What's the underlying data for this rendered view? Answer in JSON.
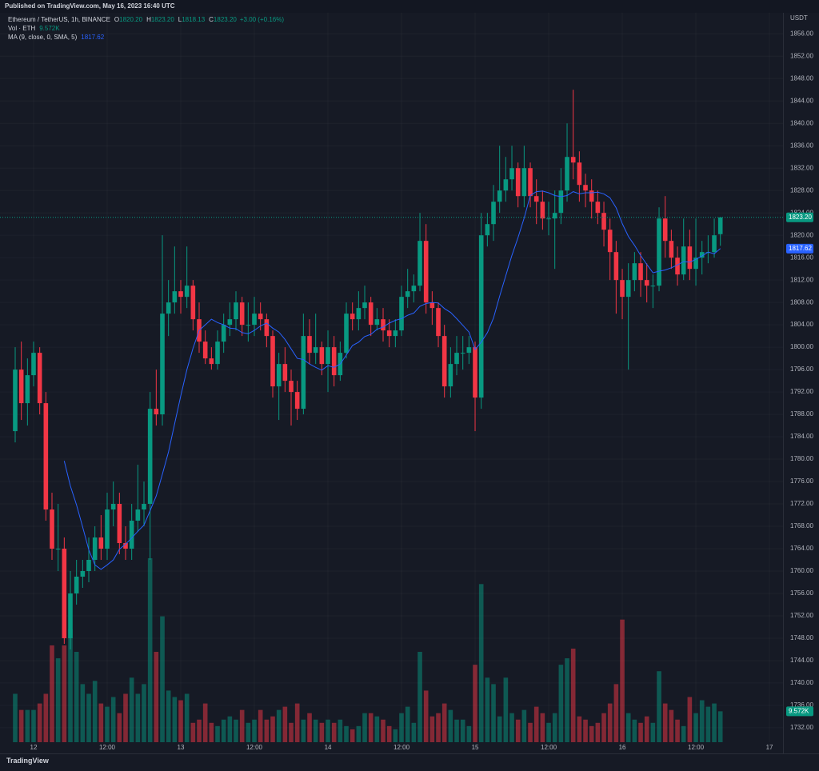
{
  "header": {
    "published": "Published on TradingView.com, May 16, 2023 16:40 UTC"
  },
  "footer": {
    "brand": "TradingView"
  },
  "chart_data": {
    "type": "candlestick",
    "symbol": "Ethereum / TetherUS, 1h, BINANCE",
    "ohlc_legend": [
      {
        "key": "O",
        "value": "1820.20"
      },
      {
        "key": "H",
        "value": "1823.20"
      },
      {
        "key": "L",
        "value": "1818.13"
      },
      {
        "key": "C",
        "value": "1823.20"
      }
    ],
    "change": "+3.00 (+0.16%)",
    "volume_legend": {
      "name": "Vol · ETH",
      "value": "9.572K"
    },
    "ma_legend": {
      "name": "MA (9, close, 0, SMA, 5)",
      "value": "1817.62"
    },
    "currency": "USDT",
    "price_label": "1823.20",
    "ma_label": "1817.62",
    "volume_label": "9.572K",
    "up_color": "#089981",
    "down_color": "#f23645",
    "ma_color": "#2962ff",
    "grid": true,
    "categories": [
      null,
      null,
      null,
      "12",
      null,
      null,
      null,
      null,
      null,
      null,
      null,
      null,
      null,
      null,
      null,
      "12:00",
      null,
      null,
      null,
      null,
      null,
      null,
      null,
      null,
      null,
      null,
      null,
      "13",
      null,
      null,
      null,
      null,
      null,
      null,
      null,
      null,
      null,
      null,
      null,
      "12:00",
      null,
      null,
      null,
      null,
      null,
      null,
      null,
      null,
      null,
      null,
      null,
      "14",
      null,
      null,
      null,
      null,
      null,
      null,
      null,
      null,
      null,
      null,
      null,
      "12:00",
      null,
      null,
      null,
      null,
      null,
      null,
      null,
      null,
      null,
      null,
      null,
      "15",
      null,
      null,
      null,
      null,
      null,
      null,
      null,
      null,
      null,
      null,
      null,
      "12:00",
      null,
      null,
      null,
      null,
      null,
      null,
      null,
      null,
      null,
      null,
      null,
      "16",
      null,
      null,
      null,
      null,
      null,
      null,
      null,
      null,
      null,
      null,
      null,
      "12:00",
      null,
      null,
      null,
      null,
      null,
      null,
      null,
      null,
      null,
      null,
      null,
      "17"
    ],
    "open": [
      1785,
      1796,
      1790,
      1795,
      1799,
      1790,
      1771,
      1764,
      1764,
      1748,
      1756,
      1759,
      1760,
      1762,
      1766,
      1764,
      1771,
      1772,
      1765,
      1764,
      1769,
      1771,
      1772,
      1789,
      1788,
      1806,
      1808,
      1810,
      1809,
      1811,
      1805,
      1801,
      1798,
      1797,
      1801,
      1804,
      1805,
      1808,
      1804,
      1804,
      1806,
      1805,
      1802,
      1793,
      1797,
      1794,
      1792,
      1789,
      1802,
      1799,
      1800,
      1797,
      1800,
      1795,
      1799,
      1806,
      1805,
      1807,
      1808,
      1804,
      1805,
      1803,
      1802,
      1803,
      1809,
      1810,
      1811,
      1819,
      1808,
      1807,
      1802,
      1793,
      1797,
      1799,
      1799,
      1800,
      1791,
      1820,
      1822,
      1826,
      1828,
      1830,
      1832,
      1827,
      1832,
      1827,
      1826,
      1823,
      1823,
      1824,
      1828,
      1834,
      1833,
      1829,
      1828,
      1826,
      1824,
      1821,
      1817,
      1812,
      1809,
      1812,
      1815,
      1812,
      1811,
      1811,
      1823,
      1819,
      1816,
      1813,
      1818,
      1814,
      1816,
      1817,
      1817,
      1820.2,
      null,
      null,
      null,
      null,
      null,
      null,
      null,
      null
    ],
    "high": [
      1800,
      1801,
      1798,
      1801,
      1800,
      1792,
      1774,
      1772,
      1766,
      1760,
      1762,
      1762,
      1766,
      1768,
      1770,
      1774,
      1776,
      1774,
      1768,
      1772,
      1779,
      1776,
      1792,
      1796,
      1820,
      1812,
      1818,
      1812,
      1818,
      1812,
      1808,
      1803,
      1800,
      1803,
      1806,
      1808,
      1810,
      1809,
      1808,
      1809,
      1808,
      1806,
      1803,
      1799,
      1800,
      1796,
      1794,
      1806,
      1805,
      1806,
      1801,
      1803,
      1802,
      1801,
      1808,
      1808,
      1810,
      1811,
      1809,
      1807,
      1807,
      1805,
      1805,
      1811,
      1814,
      1813,
      1824,
      1822,
      1810,
      1808,
      1804,
      1800,
      1802,
      1802,
      1802,
      1801,
      1824,
      1824,
      1829,
      1836,
      1834,
      1836,
      1833,
      1836,
      1833,
      1830,
      1828,
      1826,
      1828,
      1832,
      1840,
      1846,
      1835,
      1831,
      1830,
      1828,
      1826,
      1823,
      1819,
      1814,
      1815,
      1817,
      1817,
      1815,
      1813,
      1825,
      1827,
      1821,
      1818,
      1823,
      1821,
      1823,
      1819,
      1820,
      1823,
      1823.2,
      null,
      null,
      null,
      null,
      null,
      null,
      null,
      null
    ],
    "low": [
      1783,
      1787,
      1786,
      1793,
      1788,
      1769,
      1762,
      1760,
      1747,
      1746,
      1754,
      1757,
      1758,
      1760,
      1762,
      1762,
      1768,
      1763,
      1762,
      1762,
      1767,
      1768,
      1762,
      1786,
      1786,
      1802,
      1806,
      1806,
      1807,
      1803,
      1799,
      1797,
      1796,
      1796,
      1799,
      1802,
      1803,
      1802,
      1801,
      1802,
      1803,
      1800,
      1791,
      1787,
      1792,
      1786,
      1787,
      1788,
      1797,
      1797,
      1795,
      1792,
      1793,
      1794,
      1798,
      1803,
      1803,
      1805,
      1802,
      1803,
      1801,
      1800,
      1800,
      1802,
      1807,
      1808,
      1810,
      1806,
      1804,
      1800,
      1791,
      1791,
      1795,
      1796,
      1797,
      1785,
      1789,
      1818,
      1819,
      1824,
      1826,
      1828,
      1825,
      1825,
      1825,
      1822,
      1821,
      1820,
      1814,
      1822,
      1826,
      1830,
      1826,
      1825,
      1823,
      1822,
      1818,
      1812,
      1806,
      1805,
      1796,
      1810,
      1809,
      1808,
      1807,
      1810,
      1816,
      1814,
      1811,
      1812,
      1812,
      1811,
      1813,
      1815,
      1816,
      1818.13,
      null,
      null,
      null,
      null,
      null,
      null,
      null,
      null
    ],
    "close": [
      1796,
      1790,
      1795,
      1799,
      1790,
      1771,
      1764,
      1764,
      1748,
      1756,
      1759,
      1760,
      1762,
      1766,
      1764,
      1771,
      1772,
      1765,
      1764,
      1769,
      1771,
      1772,
      1789,
      1788,
      1806,
      1808,
      1810,
      1809,
      1811,
      1805,
      1801,
      1798,
      1797,
      1801,
      1804,
      1805,
      1808,
      1804,
      1804,
      1806,
      1805,
      1802,
      1793,
      1797,
      1794,
      1792,
      1789,
      1802,
      1799,
      1800,
      1797,
      1800,
      1795,
      1799,
      1806,
      1805,
      1807,
      1808,
      1804,
      1805,
      1803,
      1802,
      1803,
      1809,
      1810,
      1811,
      1819,
      1808,
      1807,
      1802,
      1793,
      1797,
      1799,
      1799,
      1800,
      1791,
      1820,
      1822,
      1826,
      1828,
      1830,
      1832,
      1827,
      1832,
      1827,
      1826,
      1823,
      1823,
      1824,
      1828,
      1834,
      1833,
      1829,
      1828,
      1826,
      1824,
      1821,
      1817,
      1812,
      1809,
      1812,
      1815,
      1812,
      1811,
      1811,
      1823,
      1819,
      1816,
      1813,
      1818,
      1814,
      1816,
      1817,
      1817,
      1820,
      1823.2,
      null,
      null,
      null,
      null,
      null,
      null,
      null,
      null
    ],
    "volume": [
      15,
      10,
      10,
      10,
      12,
      15,
      30,
      26,
      30,
      35,
      28,
      18,
      15,
      19,
      12,
      11,
      14,
      9,
      15,
      20,
      15,
      18,
      57,
      28,
      39,
      16,
      14,
      13,
      15,
      6,
      7,
      12,
      6,
      5,
      7,
      8,
      7,
      10,
      6,
      7,
      10,
      7,
      8,
      10,
      11,
      6,
      12,
      7,
      9,
      7,
      6,
      7,
      6,
      7,
      5,
      4,
      5,
      9,
      9,
      8,
      7,
      5,
      4,
      9,
      11,
      6,
      28,
      16,
      8,
      9,
      12,
      10,
      7,
      7,
      5,
      24,
      49,
      20,
      18,
      8,
      20,
      9,
      7,
      10,
      6,
      11,
      9,
      6,
      9,
      24,
      26,
      29,
      8,
      7,
      5,
      6,
      9,
      12,
      18,
      38,
      9,
      7,
      6,
      8,
      6,
      22,
      12,
      10,
      7,
      5,
      14,
      9,
      13,
      11,
      12,
      9.572,
      null,
      null,
      null,
      null,
      null,
      null,
      null,
      null
    ],
    "ma": [
      null,
      null,
      null,
      null,
      null,
      null,
      null,
      null,
      1779.7,
      1775.2,
      1771.8,
      1767.9,
      1763.8,
      1761.1,
      1760.3,
      1761.1,
      1762.0,
      1763.9,
      1764.8,
      1765.9,
      1767.1,
      1768.2,
      1770.8,
      1773.4,
      1777.3,
      1781.3,
      1786.3,
      1791.3,
      1796.0,
      1799.8,
      1803.0,
      1804.0,
      1805.0,
      1804.4,
      1804.0,
      1803.4,
      1803.3,
      1802.6,
      1802.4,
      1803.0,
      1803.8,
      1804.3,
      1803.4,
      1802.7,
      1801.4,
      1799.7,
      1798.0,
      1797.8,
      1797.0,
      1796.4,
      1795.9,
      1796.7,
      1796.4,
      1797.0,
      1798.6,
      1800.3,
      1800.9,
      1801.9,
      1802.3,
      1803.2,
      1803.6,
      1804.3,
      1804.8,
      1805.1,
      1805.7,
      1806.1,
      1807.3,
      1807.8,
      1808.0,
      1807.9,
      1806.9,
      1806.2,
      1805.1,
      1803.9,
      1802.7,
      1799.6,
      1800.9,
      1802.6,
      1805.2,
      1809.1,
      1812.8,
      1816.4,
      1819.6,
      1823.1,
      1827.1,
      1827.8,
      1827.9,
      1827.6,
      1827.1,
      1826.9,
      1827.1,
      1827.8,
      1827.4,
      1827.6,
      1827.6,
      1827.7,
      1827.4,
      1826.7,
      1824.9,
      1822.1,
      1819.8,
      1818.2,
      1816.4,
      1814.8,
      1813.3,
      1813.6,
      1813.8,
      1814.2,
      1814.7,
      1815.3,
      1815.2,
      1815.7,
      1816.3,
      1817.0,
      1816.7,
      1817.62,
      null,
      null,
      null,
      null,
      null,
      null,
      null,
      null
    ],
    "ylim": [
      1727.7,
      1859.9
    ],
    "yticks": [
      {
        "value": 1856,
        "label": "1856.00"
      },
      {
        "value": 1852,
        "label": "1852.00"
      },
      {
        "value": 1848,
        "label": "1848.00"
      },
      {
        "value": 1844,
        "label": "1844.00"
      },
      {
        "value": 1840,
        "label": "1840.00"
      },
      {
        "value": 1836,
        "label": "1836.00"
      },
      {
        "value": 1832,
        "label": "1832.00"
      },
      {
        "value": 1828,
        "label": "1828.00"
      },
      {
        "value": 1824,
        "label": "1824.00"
      },
      {
        "value": 1820,
        "label": "1820.00"
      },
      {
        "value": 1816,
        "label": "1816.00"
      },
      {
        "value": 1812,
        "label": "1812.00"
      },
      {
        "value": 1808,
        "label": "1808.00"
      },
      {
        "value": 1804,
        "label": "1804.00"
      },
      {
        "value": 1800,
        "label": "1800.00"
      },
      {
        "value": 1796,
        "label": "1796.00"
      },
      {
        "value": 1792,
        "label": "1792.00"
      },
      {
        "value": 1788,
        "label": "1788.00"
      },
      {
        "value": 1784,
        "label": "1784.00"
      },
      {
        "value": 1780,
        "label": "1780.00"
      },
      {
        "value": 1776,
        "label": "1776.00"
      },
      {
        "value": 1772,
        "label": "1772.00"
      },
      {
        "value": 1768,
        "label": "1768.00"
      },
      {
        "value": 1764,
        "label": "1764.00"
      },
      {
        "value": 1760,
        "label": "1760.00"
      },
      {
        "value": 1756,
        "label": "1756.00"
      },
      {
        "value": 1752,
        "label": "1752.00"
      },
      {
        "value": 1748,
        "label": "1748.00"
      },
      {
        "value": 1744,
        "label": "1744.00"
      },
      {
        "value": 1740,
        "label": "1740.00"
      },
      {
        "value": 1736,
        "label": "1736.00"
      },
      {
        "value": 1732,
        "label": "1732.00"
      }
    ]
  }
}
